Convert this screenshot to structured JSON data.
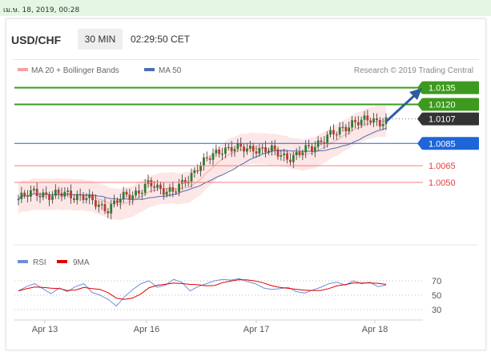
{
  "topbar": {
    "timestamp": "เม.ษ. 18, 2019, 00:28"
  },
  "header": {
    "pair": "USD/CHF",
    "timeframe": "30 MIN",
    "time": "02:29:50 CET"
  },
  "legend": {
    "bands_label": "MA 20 + Bollinger Bands",
    "ma50_label": "MA 50",
    "credit": "Research © 2019 Trading Central"
  },
  "rsi_legend": {
    "rsi_label": "RSI",
    "ma_label": "9MA"
  },
  "colors": {
    "green": "#3d9a1e",
    "blue": "#1e66d8",
    "red": "#f08080",
    "dark": "#333333",
    "arrow": "#2e5d9e",
    "ma50": "#4a6fb3",
    "band": "#fde2e2"
  },
  "chart_data": {
    "type": "candlestick",
    "instrument": "USD/CHF",
    "levels": [
      {
        "label": "1.0135",
        "value": 1.0135,
        "style": "resistance"
      },
      {
        "label": "1.0120",
        "value": 1.012,
        "style": "resistance"
      },
      {
        "label": "1.0107",
        "value": 1.0107,
        "style": "current"
      },
      {
        "label": "1.0085",
        "value": 1.0085,
        "style": "pivot"
      },
      {
        "label": "1.0065",
        "value": 1.0065,
        "style": "support"
      },
      {
        "label": "1.0050",
        "value": 1.005,
        "style": "support"
      }
    ],
    "xticks": [
      "Apr 13",
      "Apr 16",
      "Apr 17",
      "Apr 18"
    ],
    "price_path": [
      1.0035,
      1.0038,
      1.0042,
      1.004,
      1.0037,
      1.0039,
      1.0041,
      1.0038,
      1.0036,
      1.0033,
      1.003,
      1.0026,
      1.0032,
      1.0038,
      1.004,
      1.0043,
      1.0048,
      1.0045,
      1.0044,
      1.0042,
      1.0047,
      1.0055,
      1.0066,
      1.007,
      1.0074,
      1.008,
      1.0082,
      1.008,
      1.0079,
      1.0081,
      1.008,
      1.0078,
      1.0075,
      1.0073,
      1.0074,
      1.0078,
      1.0082,
      1.0088,
      1.0092,
      1.0094,
      1.01,
      1.0105,
      1.0104,
      1.0106,
      1.0105,
      1.0106
    ],
    "rsi": {
      "ticks": [
        70,
        50,
        30
      ],
      "ylim": [
        20,
        80
      ],
      "values": [
        56,
        62,
        66,
        59,
        52,
        60,
        55,
        62,
        66,
        54,
        50,
        44,
        35,
        48,
        58,
        66,
        70,
        61,
        64,
        72,
        68,
        56,
        62,
        66,
        70,
        72,
        71,
        73,
        69,
        66,
        60,
        58,
        59,
        61,
        55,
        53,
        57,
        61,
        66,
        68,
        64,
        70,
        66,
        68,
        62,
        64
      ]
    }
  }
}
